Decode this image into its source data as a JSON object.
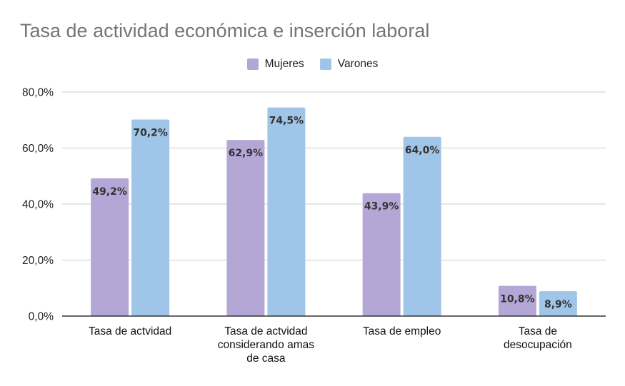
{
  "chart_data": {
    "type": "bar",
    "title": "Tasa de actividad económica e inserción laboral",
    "xlabel": "",
    "ylabel": "",
    "categories": [
      [
        "Tasa de actvidad"
      ],
      [
        "Tasa de actvidad",
        "considerando amas",
        "de casa"
      ],
      [
        "Tasa de empleo"
      ],
      [
        "Tasa de",
        "desocupación"
      ]
    ],
    "series": [
      {
        "name": "Mujeres",
        "color": "#b4a7d6",
        "values": [
          49.2,
          62.9,
          43.9,
          10.8
        ],
        "labels": [
          "49,2%",
          "62,9%",
          "43,9%",
          "10,8%"
        ]
      },
      {
        "name": "Varones",
        "color": "#9fc5e8",
        "values": [
          70.2,
          74.5,
          64.0,
          8.9
        ],
        "labels": [
          "70,2%",
          "74,5%",
          "64,0%",
          "8,9%"
        ]
      }
    ],
    "ylim": [
      0,
      80
    ],
    "yticks": [
      0,
      20,
      40,
      60,
      80
    ],
    "ytick_labels": [
      "0,0%",
      "20,0%",
      "40,0%",
      "60,0%",
      "80,0%"
    ],
    "grid": true,
    "legend_position": "top-center",
    "gridline_color": "#cccccc",
    "axis_color": "#333333"
  }
}
